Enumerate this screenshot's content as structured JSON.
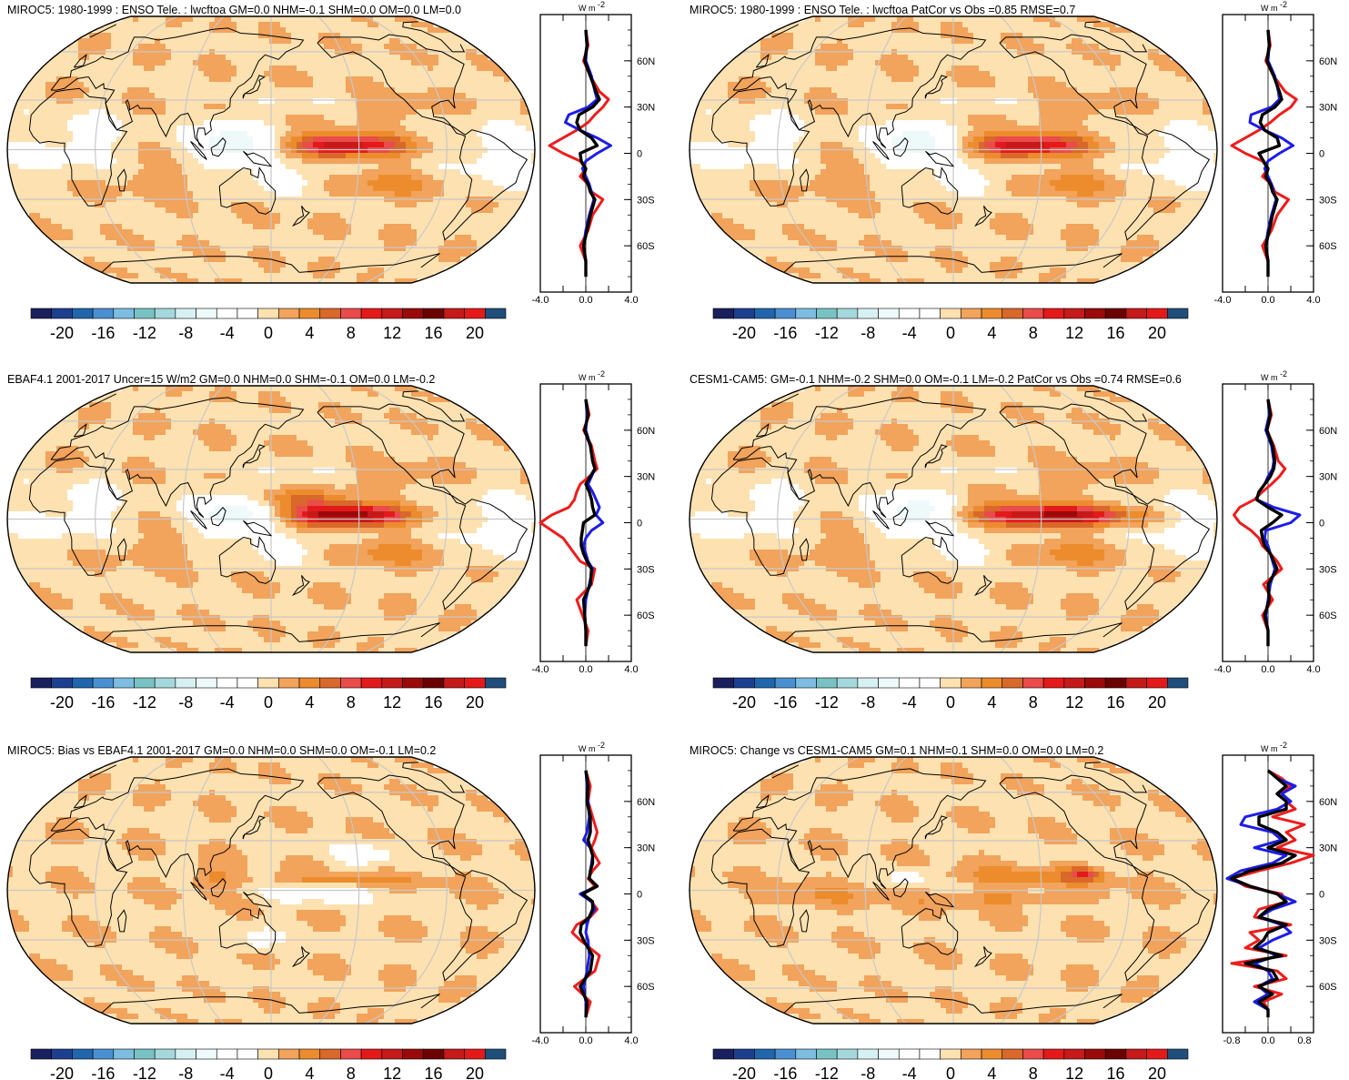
{
  "chart_data": {
    "type": "contour-map-with-zonal-mean",
    "projection": "Robinson",
    "colorbar": {
      "tick_labels": [
        "-20",
        "-16",
        "-12",
        "-8",
        "-4",
        "0",
        "4",
        "8",
        "12",
        "16",
        "20"
      ],
      "levels": [
        -22,
        -20,
        -18,
        -16,
        -14,
        -12,
        -10,
        -8,
        -6,
        -4,
        -2,
        0,
        2,
        4,
        6,
        8,
        10,
        12,
        14,
        16,
        18,
        20,
        22
      ],
      "colors": [
        "#1a1f5e",
        "#1d3f8f",
        "#2166ac",
        "#4a90d0",
        "#7cbde0",
        "#79c2c4",
        "#a5d8dc",
        "#d7f1f3",
        "#eef9fa",
        "#ffffff",
        "#ffffff",
        "#fde1b0",
        "#f2a35c",
        "#ec8c2d",
        "#d9682b",
        "#ea4b4b",
        "#e41a1a",
        "#c41a1a",
        "#9a0a0a",
        "#6b0000",
        "#c41a1a",
        "#e41a1a",
        "#1f4e7a"
      ]
    },
    "zonal_axis": {
      "lat_ticks": [
        60,
        30,
        0,
        -30,
        -60
      ],
      "lat_labels": [
        "60N",
        "30N",
        "0",
        "30S",
        "60S"
      ],
      "unit": "W m-2",
      "series_colors": {
        "red": "#ee1c1c",
        "blue": "#1c1ce8",
        "black": "#000000"
      }
    },
    "panels": [
      {
        "title": "MIROC5: 1980-1999 : ENSO Tele. : lwcftoa GM=0.0 NHM=-0.1 SHM=0.0 OM=0.0 LM=0.0",
        "xlim": [
          -4.0,
          4.0
        ],
        "x_tick_labels": [
          "-4.0",
          "0.0",
          "4.0"
        ],
        "lat": [
          80,
          70,
          60,
          50,
          40,
          35,
          30,
          25,
          20,
          15,
          10,
          5,
          0,
          -5,
          -10,
          -15,
          -20,
          -25,
          -30,
          -40,
          -50,
          -60,
          -70,
          -80
        ],
        "red": [
          0.0,
          0.2,
          -0.2,
          0.4,
          1.2,
          2.0,
          1.5,
          0.8,
          0.2,
          -0.8,
          -2.0,
          -3.2,
          -2.0,
          -0.5,
          0.0,
          -0.5,
          0.2,
          0.5,
          1.5,
          0.6,
          0.2,
          -0.5,
          0.0,
          0.0
        ],
        "blue": [
          0.0,
          0.1,
          0.0,
          0.5,
          0.8,
          1.0,
          0.2,
          -1.5,
          -1.8,
          -0.5,
          1.0,
          2.2,
          1.0,
          0.0,
          -0.3,
          0.0,
          0.3,
          0.5,
          0.7,
          0.3,
          0.0,
          -0.2,
          0.0,
          0.0
        ],
        "black": [
          0.0,
          0.1,
          -0.1,
          0.4,
          0.9,
          1.2,
          0.6,
          -0.6,
          -0.8,
          -0.5,
          0.5,
          1.0,
          -0.5,
          -0.4,
          0.0,
          -0.2,
          0.2,
          0.4,
          0.8,
          0.4,
          0.1,
          -0.2,
          0.0,
          0.0
        ],
        "map_pattern": "elnino"
      },
      {
        "title": "MIROC5: 1980-1999 : ENSO Tele. : lwcftoa PatCor vs Obs =0.85 RMSE=0.7",
        "xlim": [
          -4.0,
          4.0
        ],
        "x_tick_labels": [
          "-4.0",
          "0.0",
          "4.0"
        ],
        "lat": [
          80,
          70,
          60,
          50,
          40,
          35,
          30,
          25,
          20,
          15,
          10,
          5,
          0,
          -5,
          -10,
          -15,
          -20,
          -25,
          -30,
          -40,
          -50,
          -60,
          -70,
          -80
        ],
        "red": [
          0.0,
          0.2,
          -0.2,
          0.5,
          1.5,
          2.5,
          2.0,
          1.0,
          0.2,
          -0.8,
          -2.0,
          -3.2,
          -2.0,
          -0.5,
          0.0,
          -0.5,
          0.3,
          0.6,
          1.8,
          0.8,
          0.3,
          -0.5,
          0.0,
          0.0
        ],
        "blue": [
          0.0,
          0.1,
          0.0,
          0.6,
          0.9,
          1.0,
          0.3,
          -1.5,
          -1.6,
          -0.3,
          1.2,
          2.2,
          1.0,
          0.0,
          -0.3,
          0.0,
          0.3,
          0.5,
          0.7,
          0.3,
          0.0,
          -0.2,
          0.0,
          0.0
        ],
        "black": [
          0.0,
          0.1,
          -0.1,
          0.5,
          1.0,
          1.2,
          0.6,
          -0.5,
          -0.7,
          -0.3,
          0.8,
          1.0,
          -0.8,
          -0.4,
          0.0,
          -0.2,
          0.2,
          0.4,
          0.8,
          0.4,
          0.1,
          -0.2,
          0.0,
          0.0
        ],
        "map_pattern": "elnino"
      },
      {
        "title": "EBAF4.1 2001-2017 Uncer=15 W/m2 GM=0.0 NHM=0.0 SHM=-0.1 OM=0.0 LM=-0.2",
        "xlim": [
          -4.0,
          4.0
        ],
        "x_tick_labels": [
          "-4.0",
          "0.0",
          "4.0"
        ],
        "lat": [
          80,
          70,
          60,
          50,
          40,
          35,
          30,
          25,
          20,
          15,
          10,
          5,
          0,
          -5,
          -10,
          -15,
          -20,
          -25,
          -30,
          -40,
          -50,
          -60,
          -70,
          -80
        ],
        "red": [
          0.0,
          0.3,
          -0.2,
          0.5,
          0.8,
          1.0,
          0.3,
          -0.5,
          -0.8,
          -1.0,
          -1.5,
          -3.0,
          -4.0,
          -3.0,
          -2.0,
          -1.5,
          -1.0,
          -0.5,
          0.8,
          0.5,
          -0.8,
          -0.3,
          0.2,
          0.0
        ],
        "blue": [
          0.0,
          0.1,
          0.0,
          0.4,
          0.6,
          0.8,
          0.5,
          0.2,
          0.6,
          0.9,
          1.2,
          0.9,
          1.5,
          0.5,
          0.0,
          -0.2,
          0.0,
          0.2,
          0.6,
          0.3,
          0.0,
          -0.1,
          0.0,
          0.0
        ],
        "black": [
          0.0,
          0.2,
          -0.1,
          0.4,
          0.6,
          0.8,
          0.4,
          0.0,
          0.3,
          0.5,
          0.6,
          0.8,
          -0.2,
          -0.3,
          -0.4,
          -0.4,
          -0.2,
          0.1,
          0.5,
          0.4,
          -0.2,
          -0.1,
          0.0,
          0.0
        ],
        "map_pattern": "obs"
      },
      {
        "title": "CESM1-CAM5: GM=-0.1 NHM=-0.2 SHM=0.0 OM=-0.1 LM=-0.2 PatCor vs Obs =0.74 RMSE=0.6",
        "xlim": [
          -4.0,
          4.0
        ],
        "x_tick_labels": [
          "-4.0",
          "0.0",
          "4.0"
        ],
        "lat": [
          80,
          70,
          60,
          50,
          40,
          35,
          30,
          25,
          20,
          15,
          10,
          5,
          0,
          -5,
          -10,
          -15,
          -20,
          -25,
          -30,
          -40,
          -50,
          -60,
          -70,
          -80
        ],
        "red": [
          0.0,
          0.3,
          -0.1,
          0.5,
          0.9,
          1.5,
          1.0,
          0.3,
          -0.5,
          -1.2,
          -2.5,
          -3.0,
          -2.5,
          -1.5,
          -0.8,
          -0.5,
          0.2,
          0.8,
          1.2,
          -0.4,
          0.4,
          -0.5,
          0.0,
          0.0
        ],
        "blue": [
          0.0,
          0.1,
          -0.2,
          0.3,
          0.5,
          0.4,
          0.0,
          -0.3,
          -0.8,
          -1.0,
          0.5,
          2.8,
          2.0,
          -0.2,
          -0.3,
          0.0,
          0.2,
          0.4,
          0.6,
          0.2,
          0.0,
          -0.2,
          0.0,
          0.0
        ],
        "black": [
          0.0,
          0.2,
          -0.1,
          0.4,
          0.6,
          0.5,
          0.2,
          -0.3,
          -0.8,
          -1.0,
          0.0,
          1.2,
          0.4,
          -0.6,
          -0.5,
          -0.3,
          0.2,
          0.5,
          0.8,
          0.0,
          0.1,
          -0.3,
          0.0,
          0.0
        ],
        "map_pattern": "cesm"
      },
      {
        "title": "MIROC5: Bias vs EBAF4.1 2001-2017 GM=0.0 NHM=0.0 SHM=0.0 OM=-0.1 LM=0.2",
        "xlim": [
          -4.0,
          4.0
        ],
        "x_tick_labels": [
          "-4.0",
          "0.0",
          "4.0"
        ],
        "lat": [
          80,
          70,
          60,
          50,
          40,
          35,
          30,
          25,
          20,
          15,
          10,
          5,
          0,
          -5,
          -10,
          -15,
          -20,
          -25,
          -30,
          -40,
          -50,
          -60,
          -70,
          -80
        ],
        "red": [
          0.0,
          0.4,
          0.2,
          0.6,
          1.0,
          0.8,
          0.5,
          0.8,
          1.2,
          0.6,
          0.2,
          0.8,
          -0.3,
          0.5,
          1.0,
          0.4,
          -0.8,
          -1.2,
          -0.5,
          1.2,
          0.8,
          -1.0,
          0.4,
          0.0
        ],
        "blue": [
          0.0,
          0.1,
          0.2,
          0.3,
          0.1,
          -0.2,
          0.4,
          0.6,
          0.5,
          0.4,
          0.3,
          1.0,
          -0.5,
          0.5,
          0.8,
          0.3,
          0.1,
          0.0,
          0.2,
          0.3,
          0.1,
          -0.2,
          0.0,
          0.0
        ],
        "black": [
          0.0,
          0.2,
          0.1,
          0.4,
          0.4,
          0.2,
          0.4,
          0.6,
          0.6,
          0.4,
          0.3,
          1.0,
          -0.3,
          0.6,
          0.6,
          0.3,
          -0.4,
          -0.5,
          -0.2,
          0.6,
          0.4,
          -0.5,
          0.1,
          0.0
        ],
        "map_pattern": "bias"
      },
      {
        "title": "MIROC5: Change vs CESM1-CAM5 GM=0.1 NHM=0.1 SHM=0.0 OM=0.0 LM=0.2",
        "xlim": [
          -1.0,
          1.0
        ],
        "x_tick_labels": [
          "-0.8",
          "0.0",
          "0.8"
        ],
        "lat": [
          80,
          75,
          70,
          65,
          60,
          55,
          50,
          45,
          40,
          35,
          30,
          25,
          20,
          15,
          10,
          5,
          0,
          -5,
          -10,
          -15,
          -20,
          -25,
          -30,
          -35,
          -40,
          -45,
          -50,
          -55,
          -60,
          -65,
          -70,
          -75,
          -80
        ],
        "red": [
          0.0,
          0.3,
          0.5,
          0.2,
          0.4,
          0.6,
          0.1,
          0.8,
          0.4,
          0.6,
          0.2,
          1.0,
          0.5,
          -0.2,
          -0.8,
          -0.5,
          0.3,
          0.4,
          -0.2,
          -0.3,
          0.5,
          -0.4,
          -0.2,
          -0.5,
          0.4,
          -0.8,
          0.2,
          0.4,
          -0.3,
          0.3,
          -0.1,
          0.0,
          0.0
        ],
        "blue": [
          0.0,
          0.2,
          0.6,
          0.3,
          0.5,
          0.2,
          -0.5,
          -0.6,
          0.1,
          0.3,
          -0.3,
          0.4,
          0.1,
          -0.6,
          -0.9,
          -0.4,
          0.2,
          0.6,
          0.1,
          -0.2,
          0.3,
          0.5,
          0.1,
          -0.2,
          0.2,
          -0.3,
          0.0,
          0.1,
          -0.2,
          0.0,
          -0.3,
          0.0,
          0.0
        ],
        "black": [
          0.0,
          0.2,
          0.4,
          0.2,
          0.4,
          0.4,
          -0.2,
          -0.2,
          0.2,
          0.4,
          0.0,
          0.6,
          0.3,
          -0.4,
          -0.8,
          -0.4,
          0.2,
          0.4,
          0.0,
          -0.2,
          0.4,
          0.0,
          -0.1,
          -0.3,
          0.3,
          -0.5,
          0.1,
          0.2,
          -0.2,
          0.1,
          -0.2,
          0.0,
          0.0
        ],
        "map_pattern": "change"
      }
    ]
  }
}
